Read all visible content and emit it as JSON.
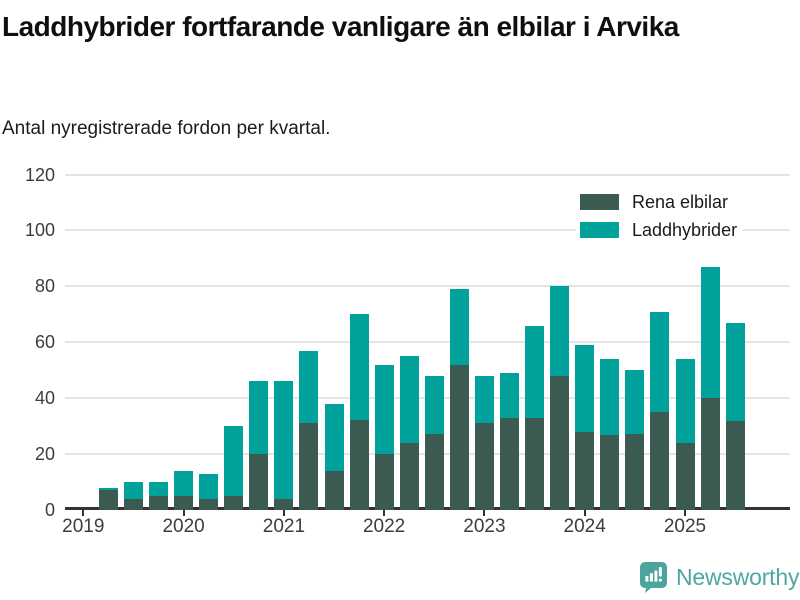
{
  "header": {
    "title": "Laddhybrider fortfarande vanligare än elbilar i Arvika",
    "subtitle": "Antal nyregistrerade fordon per kvartal."
  },
  "legend": [
    {
      "label": "Rena elbilar",
      "color": "#3b5a52"
    },
    {
      "label": "Laddhybrider",
      "color": "#00a29b"
    }
  ],
  "footer": {
    "brand": "Newsworthy",
    "brand_color": "#4ea7a1"
  },
  "colors": {
    "axis": "#333333",
    "grid": "#e4e4e4",
    "tick_text": "#3d3d3d",
    "title_text": "#0f0f0f"
  },
  "chart_data": {
    "type": "bar",
    "stacked": true,
    "title": "Laddhybrider fortfarande vanligare än elbilar i Arvika",
    "subtitle": "Antal nyregistrerade fordon per kvartal.",
    "x": [
      "2019-Q2",
      "2019-Q3",
      "2019-Q4",
      "2020-Q1",
      "2020-Q2",
      "2020-Q3",
      "2020-Q4",
      "2021-Q1",
      "2021-Q2",
      "2021-Q3",
      "2021-Q4",
      "2022-Q1",
      "2022-Q2",
      "2022-Q3",
      "2022-Q4",
      "2023-Q1",
      "2023-Q2",
      "2023-Q3",
      "2023-Q4",
      "2024-Q1",
      "2024-Q2",
      "2024-Q3",
      "2024-Q4",
      "2025-Q1",
      "2025-Q2",
      "2025-Q3"
    ],
    "series": [
      {
        "name": "Rena elbilar",
        "color": "#3b5a52",
        "values": [
          7,
          4,
          5,
          5,
          4,
          5,
          20,
          4,
          31,
          14,
          32,
          20,
          24,
          27,
          52,
          31,
          33,
          33,
          48,
          28,
          27,
          27,
          35,
          24,
          40,
          32
        ]
      },
      {
        "name": "Laddhybrider",
        "color": "#00a29b",
        "values": [
          1,
          6,
          5,
          9,
          9,
          25,
          26,
          42,
          26,
          24,
          38,
          32,
          31,
          21,
          27,
          17,
          16,
          33,
          32,
          31,
          27,
          23,
          36,
          30,
          47,
          35
        ]
      }
    ],
    "totals": [
      8,
      10,
      10,
      14,
      13,
      30,
      46,
      46,
      57,
      38,
      70,
      52,
      55,
      48,
      79,
      48,
      49,
      66,
      80,
      59,
      54,
      50,
      71,
      54,
      87,
      67
    ],
    "year_ticks": [
      "2019",
      "2020",
      "2021",
      "2022",
      "2023",
      "2024",
      "2025"
    ],
    "y_ticks": [
      0,
      20,
      40,
      60,
      80,
      100,
      120
    ],
    "ylim": [
      0,
      120
    ],
    "grid": true,
    "legend_position": "top-right"
  }
}
